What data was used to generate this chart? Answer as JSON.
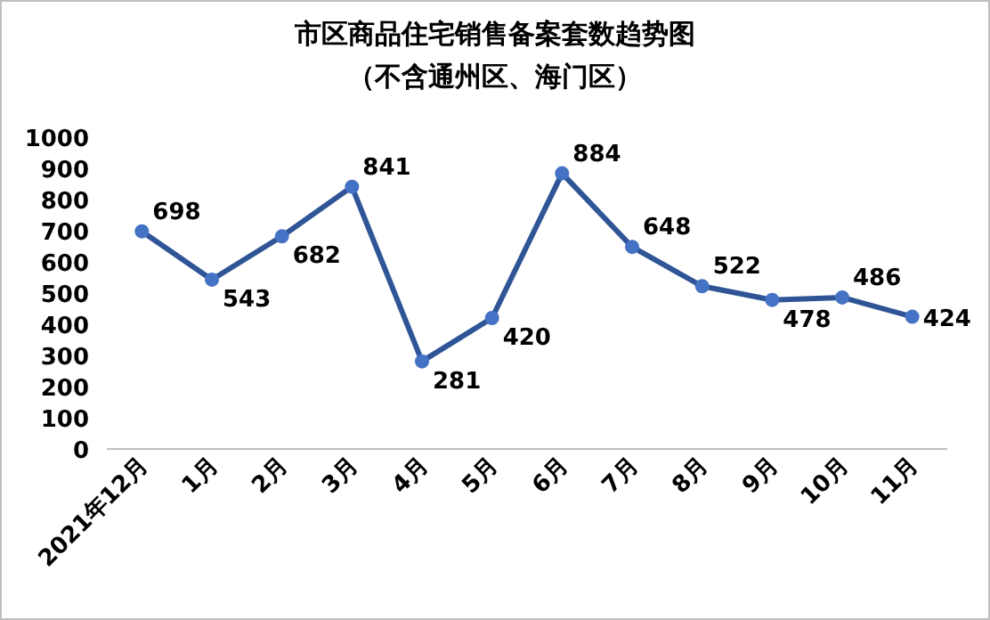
{
  "chart_data": {
    "type": "line",
    "title": "市区商品住宅销售备案套数趋势图",
    "subtitle": "（不含通州区、海门区）",
    "categories": [
      "2021年12月",
      "1月",
      "2月",
      "3月",
      "4月",
      "5月",
      "6月",
      "7月",
      "8月",
      "9月",
      "10月",
      "11月"
    ],
    "series": [
      {
        "color": "#2f5597",
        "values": [
          698,
          543,
          682,
          841,
          281,
          420,
          884,
          648,
          522,
          478,
          486,
          424
        ]
      }
    ],
    "ylim": [
      0,
      1000
    ],
    "yticks": [
      0,
      100,
      200,
      300,
      400,
      500,
      600,
      700,
      800,
      900,
      1000
    ],
    "data_labels": true,
    "marker": "circle",
    "line_style": "solid"
  }
}
